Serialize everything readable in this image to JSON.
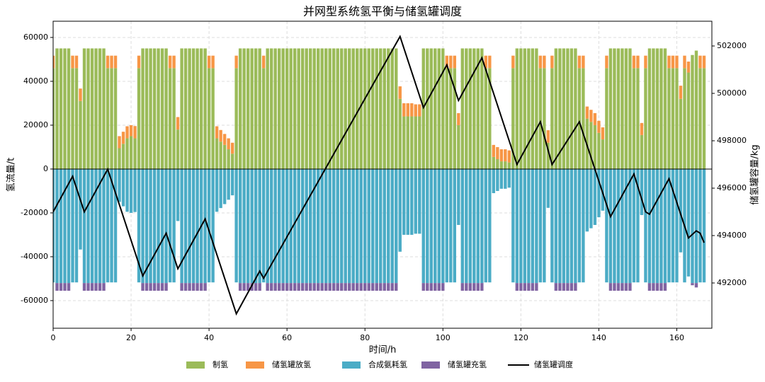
{
  "chart_data": {
    "type": "bar",
    "title": "并网型系统氢平衡与储氢罐调度",
    "x_label": "时间/h",
    "y_label": "氢流量/t",
    "y2_label": "储氢罐容量/kg",
    "xlim": [
      0,
      169
    ],
    "xticks": [
      0,
      20,
      40,
      60,
      80,
      100,
      120,
      140,
      160
    ],
    "ylim": [
      -72600,
      67400
    ],
    "yticks": [
      -60000,
      -40000,
      -20000,
      0,
      20000,
      40000,
      60000
    ],
    "y2lim": [
      490090,
      503045
    ],
    "y2ticks": [
      492000,
      494000,
      496000,
      498000,
      500000,
      502000
    ],
    "grid": true,
    "legend": "bottom",
    "series": [
      {
        "name": "制氢",
        "color": "#9bbb59",
        "values": [
          46000,
          55000,
          55000,
          55000,
          55000,
          46000,
          46000,
          31000,
          55000,
          55000,
          55000,
          55000,
          55000,
          55000,
          46000,
          46000,
          46000,
          9500,
          11500,
          14000,
          15000,
          14000,
          46000,
          55000,
          55000,
          55000,
          55000,
          55000,
          55000,
          55000,
          46000,
          46000,
          18000,
          55000,
          55000,
          55000,
          55000,
          55000,
          55000,
          55000,
          46000,
          46000,
          14000,
          12500,
          11000,
          9000,
          7000,
          46000,
          55000,
          55000,
          55000,
          55000,
          55000,
          55000,
          46000,
          55000,
          55000,
          55000,
          55000,
          55000,
          55000,
          55000,
          55000,
          55000,
          55000,
          55000,
          55000,
          55000,
          55000,
          55000,
          55000,
          55000,
          55000,
          55000,
          55000,
          55000,
          55000,
          55000,
          55000,
          55000,
          55000,
          55000,
          55000,
          55000,
          55000,
          55000,
          55000,
          55000,
          55000,
          32000,
          24000,
          24000,
          24000,
          24000,
          24000,
          55000,
          55000,
          55000,
          55000,
          55000,
          55000,
          46000,
          46000,
          46000,
          20000,
          55000,
          55000,
          55000,
          55000,
          55000,
          55000,
          46000,
          46000,
          5500,
          4500,
          3500,
          3500,
          3000,
          46000,
          55000,
          55000,
          55000,
          55000,
          55000,
          55000,
          46000,
          46000,
          12000,
          46000,
          55000,
          55000,
          55000,
          55000,
          55000,
          55000,
          46000,
          46000,
          23000,
          21500,
          20000,
          16500,
          13500,
          46000,
          55000,
          55000,
          55000,
          55000,
          55000,
          55000,
          46000,
          46000,
          15500,
          46000,
          55000,
          55000,
          55000,
          55000,
          55000,
          46000,
          46000,
          46000,
          32000,
          46000,
          44000,
          52000,
          54000,
          46000,
          46000
        ]
      },
      {
        "name": "储氢罐放氢",
        "color": "#f79646",
        "values": [
          5700,
          0,
          0,
          0,
          0,
          5700,
          5700,
          5700,
          0,
          0,
          0,
          0,
          0,
          0,
          5700,
          5700,
          5700,
          5500,
          5500,
          5500,
          5000,
          5600,
          5700,
          0,
          0,
          0,
          0,
          0,
          0,
          0,
          5700,
          5700,
          5700,
          0,
          0,
          0,
          0,
          0,
          0,
          0,
          5700,
          5700,
          5500,
          5300,
          5000,
          5000,
          5000,
          5700,
          0,
          0,
          0,
          0,
          0,
          0,
          5700,
          0,
          0,
          0,
          0,
          0,
          0,
          0,
          0,
          0,
          0,
          0,
          0,
          0,
          0,
          0,
          0,
          0,
          0,
          0,
          0,
          0,
          0,
          0,
          0,
          0,
          0,
          0,
          0,
          0,
          0,
          0,
          0,
          0,
          0,
          5700,
          6000,
          6000,
          6000,
          5500,
          5500,
          0,
          0,
          0,
          0,
          0,
          0,
          5700,
          5700,
          5700,
          5500,
          0,
          0,
          0,
          0,
          0,
          0,
          5700,
          5700,
          5500,
          5500,
          5500,
          5500,
          5500,
          5700,
          0,
          0,
          0,
          0,
          0,
          0,
          5700,
          5700,
          5700,
          5700,
          0,
          0,
          0,
          0,
          0,
          0,
          5700,
          5700,
          5500,
          5500,
          5500,
          5500,
          5500,
          5700,
          0,
          0,
          0,
          0,
          0,
          0,
          5700,
          5700,
          5500,
          5700,
          0,
          0,
          0,
          0,
          0,
          5700,
          5700,
          5700,
          6000,
          5700,
          5000,
          0,
          0,
          5700,
          5700
        ]
      },
      {
        "name": "合成氨耗氢",
        "color": "#4bacc6",
        "values": [
          -51700,
          -52000,
          -52000,
          -52000,
          -52000,
          -51700,
          -51700,
          -36700,
          -52000,
          -52000,
          -52000,
          -52000,
          -52000,
          -52000,
          -51700,
          -51700,
          -51700,
          -15000,
          -17000,
          -19500,
          -20000,
          -19600,
          -51700,
          -52000,
          -52000,
          -52000,
          -52000,
          -52000,
          -52000,
          -52000,
          -51700,
          -51700,
          -23700,
          -52000,
          -52000,
          -52000,
          -52000,
          -52000,
          -52000,
          -52000,
          -51700,
          -51700,
          -19500,
          -17800,
          -16000,
          -14000,
          -12000,
          -51700,
          -52000,
          -52000,
          -52000,
          -52000,
          -52000,
          -52000,
          -51700,
          -52000,
          -52000,
          -52000,
          -52000,
          -52000,
          -52000,
          -52000,
          -52000,
          -52000,
          -52000,
          -52000,
          -52000,
          -52000,
          -52000,
          -52000,
          -52000,
          -52000,
          -52000,
          -52000,
          -52000,
          -52000,
          -52000,
          -52000,
          -52000,
          -52000,
          -52000,
          -52000,
          -52000,
          -52000,
          -52000,
          -52000,
          -52000,
          -52000,
          -52000,
          -37700,
          -30000,
          -30000,
          -30000,
          -29500,
          -29500,
          -52000,
          -52000,
          -52000,
          -52000,
          -52000,
          -52000,
          -51700,
          -51700,
          -51700,
          -25500,
          -52000,
          -52000,
          -52000,
          -52000,
          -52000,
          -52000,
          -51700,
          -51700,
          -11000,
          -10000,
          -9000,
          -9000,
          -8500,
          -51700,
          -52000,
          -52000,
          -52000,
          -52000,
          -52000,
          -52000,
          -51700,
          -51700,
          -17700,
          -51700,
          -52000,
          -52000,
          -52000,
          -52000,
          -52000,
          -52000,
          -51700,
          -51700,
          -28500,
          -27000,
          -25500,
          -22000,
          -19000,
          -51700,
          -52000,
          -52000,
          -52000,
          -52000,
          -52000,
          -52000,
          -51700,
          -51700,
          -21000,
          -51700,
          -52000,
          -52000,
          -52000,
          -52000,
          -52000,
          -51700,
          -51700,
          -51700,
          -38000,
          -51700,
          -49000,
          -52000,
          -52000,
          -51700,
          -51700
        ]
      },
      {
        "name": "储氢罐充氢",
        "color": "#8064a2",
        "values": [
          0,
          -3500,
          -3500,
          -3500,
          -3500,
          0,
          0,
          0,
          -3500,
          -3500,
          -3500,
          -3500,
          -3500,
          -3500,
          0,
          0,
          0,
          0,
          0,
          0,
          0,
          0,
          0,
          -3500,
          -3500,
          -3500,
          -3500,
          -3500,
          -3500,
          -3500,
          0,
          0,
          0,
          -3500,
          -3500,
          -3500,
          -3500,
          -3500,
          -3500,
          -3500,
          0,
          0,
          0,
          0,
          0,
          0,
          0,
          0,
          -3500,
          -3500,
          -3500,
          -3500,
          -3500,
          -3500,
          0,
          -3500,
          -3500,
          -3500,
          -3500,
          -3500,
          -3500,
          -3500,
          -3500,
          -3500,
          -3500,
          -3500,
          -3500,
          -3500,
          -3500,
          -3500,
          -3500,
          -3500,
          -3500,
          -3500,
          -3500,
          -3500,
          -3500,
          -3500,
          -3500,
          -3500,
          -3500,
          -3500,
          -3500,
          -3500,
          -3500,
          -3500,
          -3500,
          -3500,
          -3500,
          0,
          0,
          0,
          0,
          0,
          0,
          -3500,
          -3500,
          -3500,
          -3500,
          -3500,
          -3500,
          0,
          0,
          0,
          0,
          -3500,
          -3500,
          -3500,
          -3500,
          -3500,
          -3500,
          0,
          0,
          0,
          0,
          0,
          0,
          0,
          0,
          -3500,
          -3500,
          -3500,
          -3500,
          -3500,
          -3500,
          0,
          0,
          0,
          0,
          -3500,
          -3500,
          -3500,
          -3500,
          -3500,
          -3500,
          0,
          0,
          0,
          0,
          0,
          0,
          0,
          0,
          -3500,
          -3500,
          -3500,
          -3500,
          -3500,
          -3500,
          0,
          0,
          0,
          0,
          -3500,
          -3500,
          -3500,
          -3500,
          -3500,
          0,
          0,
          0,
          0,
          0,
          0,
          -1000,
          -2000,
          0,
          0
        ]
      },
      {
        "name": "储氢罐调度",
        "color": "#000000",
        "type": "line",
        "axis": "y2",
        "x": [
          0,
          5,
          8,
          14,
          23,
          29,
          32,
          39,
          47,
          53,
          54,
          89,
          95,
          101,
          104,
          110,
          119,
          125,
          128,
          135,
          143,
          149,
          152,
          153,
          158,
          163,
          165,
          166,
          167
        ],
        "values": [
          495000,
          496500,
          495000,
          496800,
          492300,
          494100,
          492600,
          494700,
          490700,
          492500,
          492200,
          502400,
          499400,
          501200,
          499700,
          501500,
          497000,
          498800,
          497000,
          498800,
          494800,
          496600,
          495000,
          494900,
          496400,
          493900,
          494200,
          494100,
          493700
        ]
      }
    ]
  }
}
